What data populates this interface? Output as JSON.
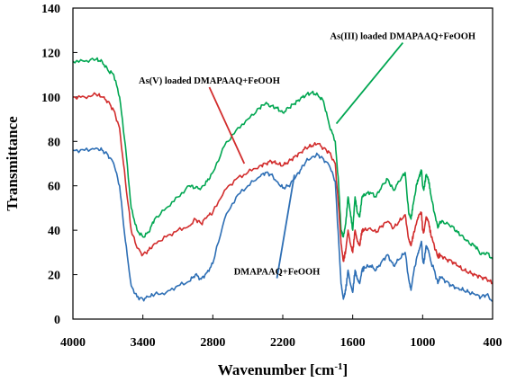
{
  "chart_data": {
    "type": "line",
    "title": "",
    "xlabel": "Wavenumber [cm",
    "xlabel_sup": "-1",
    "xlabel_end": "]",
    "ylabel": "Transmittance",
    "xlim": [
      4000,
      400
    ],
    "ylim": [
      0,
      140
    ],
    "x_reversed": true,
    "x_ticks": [
      4000,
      3400,
      2800,
      2200,
      1600,
      1000,
      400
    ],
    "y_ticks": [
      0,
      20,
      40,
      60,
      80,
      100,
      120,
      140
    ],
    "grid": false,
    "legend": "none",
    "series": [
      {
        "name": "As(III) loaded DMAPAAQ+FeOOH",
        "color": "#00a651",
        "x": [
          4000,
          3900,
          3800,
          3750,
          3700,
          3650,
          3600,
          3550,
          3500,
          3450,
          3400,
          3350,
          3300,
          3200,
          3100,
          3000,
          2950,
          2900,
          2850,
          2800,
          2700,
          2600,
          2500,
          2400,
          2350,
          2300,
          2250,
          2200,
          2150,
          2100,
          2050,
          2000,
          1950,
          1900,
          1850,
          1800,
          1750,
          1720,
          1700,
          1680,
          1660,
          1640,
          1620,
          1600,
          1580,
          1560,
          1540,
          1520,
          1500,
          1450,
          1400,
          1350,
          1300,
          1250,
          1200,
          1150,
          1120,
          1100,
          1080,
          1050,
          1030,
          1010,
          1000,
          990,
          970,
          950,
          930,
          900,
          870,
          850,
          800,
          750,
          700,
          650,
          600,
          550,
          500,
          450,
          400
        ],
        "y": [
          116,
          116,
          117,
          116,
          112,
          110,
          100,
          78,
          50,
          40,
          37,
          39,
          45,
          50,
          55,
          60,
          59,
          59,
          62,
          66,
          78,
          85,
          90,
          95,
          97,
          96,
          95,
          93,
          95,
          97,
          99,
          101,
          102,
          101,
          98,
          87,
          80,
          60,
          40,
          37,
          43,
          55,
          48,
          40,
          55,
          48,
          46,
          55,
          56,
          57,
          55,
          60,
          63,
          58,
          62,
          66,
          48,
          45,
          52,
          61,
          64,
          67,
          60,
          58,
          65,
          63,
          56,
          48,
          41,
          44,
          43,
          42,
          39,
          37,
          34,
          33,
          29,
          30,
          27
        ]
      },
      {
        "name": "As(V) loaded DMAPAAQ+FeOOH",
        "color": "#d22d2d",
        "x": [
          4000,
          3900,
          3800,
          3750,
          3700,
          3650,
          3600,
          3550,
          3500,
          3450,
          3400,
          3350,
          3300,
          3200,
          3100,
          3000,
          2950,
          2900,
          2850,
          2800,
          2700,
          2600,
          2500,
          2400,
          2350,
          2300,
          2250,
          2200,
          2150,
          2100,
          2050,
          2000,
          1950,
          1900,
          1850,
          1800,
          1750,
          1720,
          1700,
          1680,
          1660,
          1640,
          1620,
          1600,
          1580,
          1560,
          1540,
          1520,
          1500,
          1450,
          1400,
          1350,
          1300,
          1250,
          1200,
          1150,
          1120,
          1100,
          1080,
          1050,
          1030,
          1010,
          1000,
          990,
          970,
          950,
          930,
          900,
          870,
          850,
          800,
          750,
          700,
          650,
          600,
          550,
          500,
          450,
          400
        ],
        "y": [
          100,
          100,
          101,
          100,
          98,
          94,
          86,
          62,
          40,
          32,
          29,
          31,
          34,
          37,
          40,
          42,
          45,
          43,
          46,
          48,
          58,
          63,
          66,
          69,
          70,
          71,
          70,
          69,
          71,
          73,
          75,
          77,
          78,
          79,
          77,
          75,
          70,
          50,
          34,
          26,
          31,
          40,
          34,
          30,
          40,
          35,
          33,
          40,
          40,
          41,
          39,
          42,
          44,
          41,
          44,
          47,
          36,
          33,
          38,
          44,
          47,
          48,
          40,
          39,
          46,
          44,
          38,
          33,
          28,
          29,
          27,
          26,
          24,
          22,
          21,
          20,
          19,
          18,
          16
        ]
      },
      {
        "name": "DMAPAAQ+FeOOH",
        "color": "#2e6fb5",
        "x": [
          4000,
          3900,
          3800,
          3750,
          3700,
          3650,
          3600,
          3550,
          3500,
          3450,
          3400,
          3350,
          3300,
          3200,
          3100,
          3000,
          2950,
          2900,
          2850,
          2800,
          2700,
          2600,
          2500,
          2400,
          2350,
          2300,
          2250,
          2200,
          2150,
          2100,
          2050,
          2000,
          1950,
          1900,
          1850,
          1800,
          1750,
          1720,
          1700,
          1680,
          1660,
          1640,
          1620,
          1600,
          1580,
          1560,
          1540,
          1520,
          1500,
          1450,
          1400,
          1350,
          1300,
          1250,
          1200,
          1150,
          1120,
          1100,
          1080,
          1050,
          1030,
          1010,
          1000,
          990,
          970,
          950,
          930,
          900,
          870,
          850,
          800,
          750,
          700,
          650,
          600,
          550,
          500,
          450,
          400
        ],
        "y": [
          76,
          76,
          77,
          76,
          74,
          70,
          60,
          35,
          15,
          10,
          9,
          10,
          11,
          12,
          15,
          17,
          20,
          18,
          21,
          25,
          45,
          55,
          60,
          64,
          66,
          65,
          62,
          59,
          60,
          63,
          67,
          71,
          73,
          74,
          72,
          69,
          62,
          35,
          16,
          9,
          13,
          22,
          16,
          12,
          22,
          18,
          16,
          22,
          23,
          24,
          22,
          26,
          29,
          24,
          27,
          30,
          18,
          13,
          20,
          28,
          31,
          35,
          27,
          25,
          33,
          31,
          26,
          22,
          16,
          19,
          17,
          15,
          14,
          13,
          12,
          11,
          10,
          11,
          8
        ]
      }
    ],
    "annotations": [
      {
        "text": "As(III) loaded DMAPAAQ+FeOOH",
        "series": 0,
        "x_text": 1170,
        "y_text": 126,
        "x_point": 1740,
        "y_point": 88
      },
      {
        "text": "As(V) loaded DMAPAAQ+FeOOH",
        "series": 1,
        "x_text": 2830,
        "y_text": 106,
        "x_point": 2530,
        "y_point": 70
      },
      {
        "text": "DMAPAAQ+FeOOH",
        "series": 2,
        "x_text": 2250,
        "y_text": 20,
        "x_point": 2100,
        "y_point": 65
      }
    ]
  }
}
